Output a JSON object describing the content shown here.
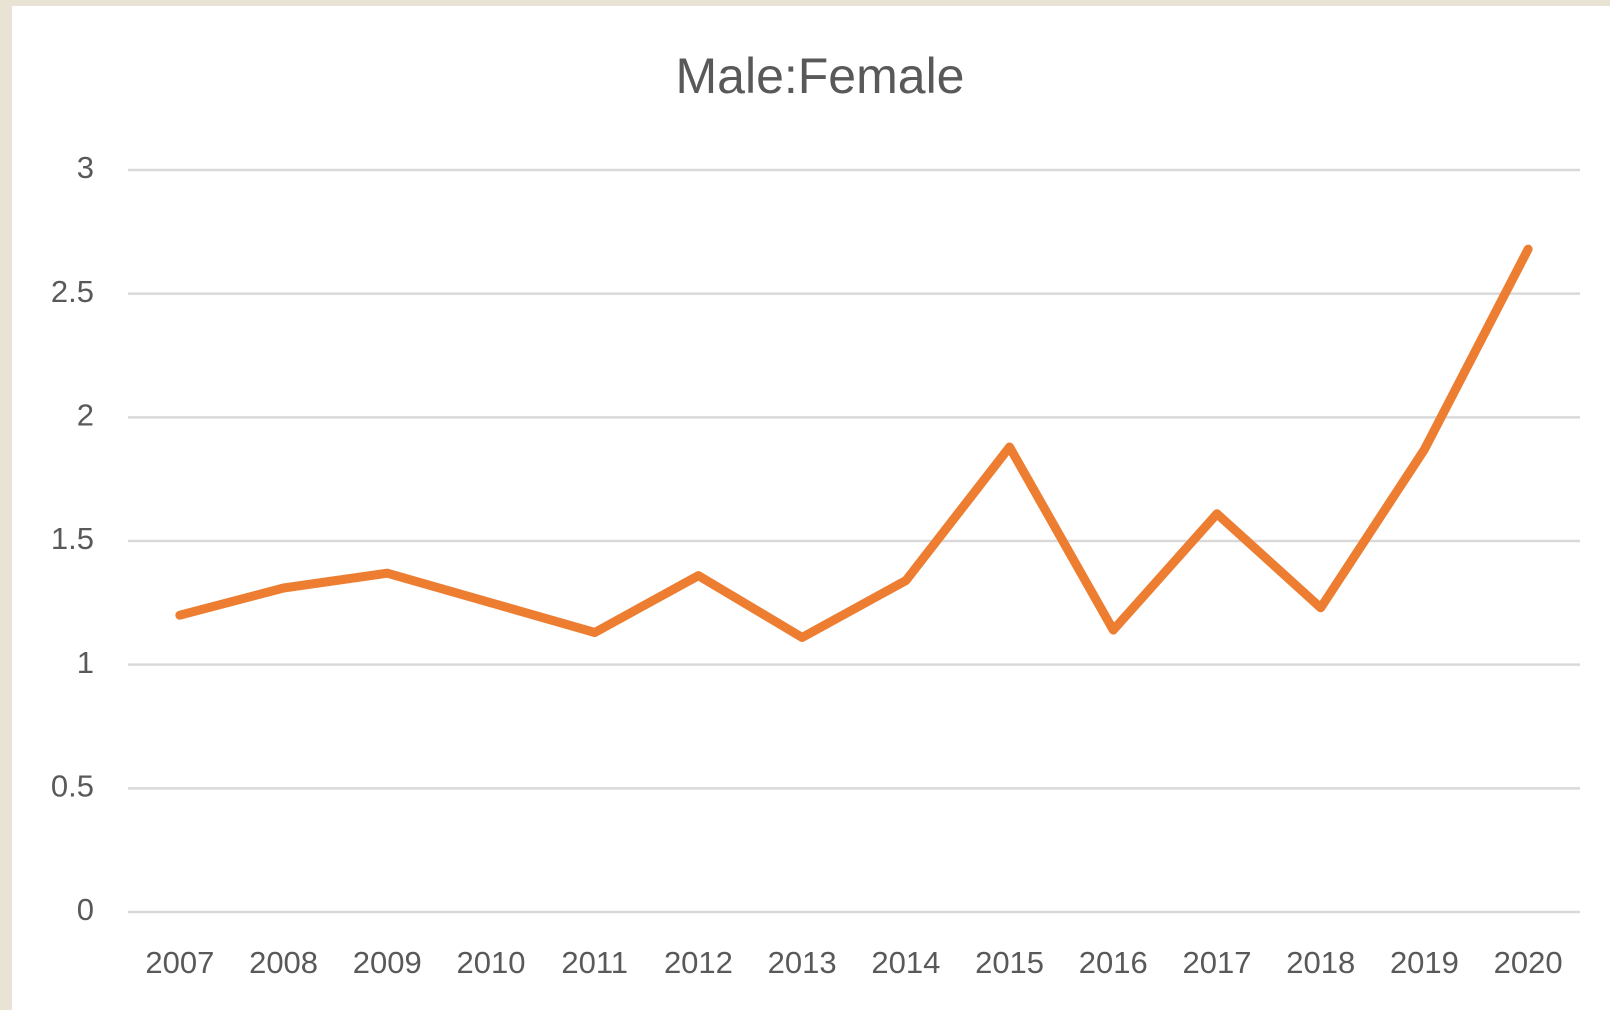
{
  "chart_data": {
    "type": "line",
    "title": "Male:Female",
    "categories": [
      "2007",
      "2008",
      "2009",
      "2010",
      "2011",
      "2012",
      "2013",
      "2014",
      "2015",
      "2016",
      "2017",
      "2018",
      "2019",
      "2020"
    ],
    "series": [
      {
        "name": "Male:Female",
        "color": "#ed7d31",
        "values": [
          1.2,
          1.31,
          1.37,
          1.25,
          1.13,
          1.36,
          1.11,
          1.34,
          1.88,
          1.14,
          1.61,
          1.23,
          1.87,
          2.68
        ]
      }
    ],
    "ylim": [
      0,
      3
    ],
    "yticks": [
      0,
      0.5,
      1,
      1.5,
      2,
      2.5,
      3
    ],
    "grid": true
  }
}
